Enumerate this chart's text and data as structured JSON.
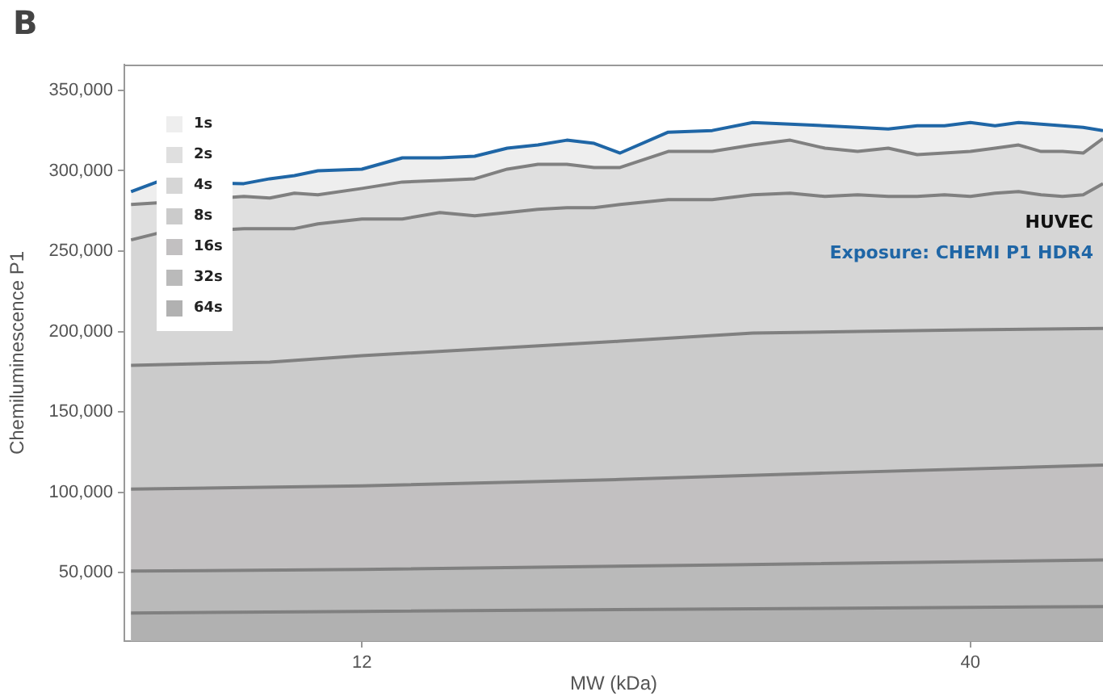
{
  "chart_data": {
    "type": "area",
    "title": "B",
    "xlabel": "MW (kDa)",
    "ylabel": "Chemiluminescence P1",
    "log": "x",
    "xlim": [
      7.5,
      52
    ],
    "xticks": [
      12,
      40
    ],
    "ylim": [
      7500,
      366000
    ],
    "yticks": [
      {
        "value": 50000,
        "label": "50,000"
      },
      {
        "value": 100000,
        "label": "100,000"
      },
      {
        "value": 150000,
        "label": "150,000"
      },
      {
        "value": 200000,
        "label": "200,000"
      },
      {
        "value": 250000,
        "label": "250,000"
      },
      {
        "value": 300000,
        "label": "300,000"
      },
      {
        "value": 350000,
        "label": "350,000"
      }
    ],
    "legend": "top left",
    "annotations": [
      "HUVEC",
      "Exposure: CHEMI P1 HDR4"
    ],
    "x": [
      7.6,
      8,
      8.5,
      9,
      9.5,
      10,
      10.5,
      11,
      12,
      13,
      14,
      15,
      16,
      17,
      18,
      19,
      20,
      22,
      24,
      26,
      28,
      30,
      32,
      34,
      36,
      38,
      40,
      42,
      44,
      46,
      48,
      50,
      52
    ],
    "series": [
      {
        "name": "1s",
        "color": "#eeeeee",
        "values": [
          287000,
          293000,
          null,
          null,
          292000,
          295000,
          297000,
          300000,
          301000,
          308000,
          308000,
          309000,
          314000,
          316000,
          319000,
          317000,
          311000,
          324000,
          325000,
          330000,
          329000,
          328000,
          327000,
          326000,
          328000,
          328000,
          330000,
          328000,
          330000,
          329000,
          328000,
          327000,
          325000
        ]
      },
      {
        "name": "2s",
        "color": "#dfdfdf",
        "values": [
          279000,
          280000,
          null,
          null,
          284000,
          283000,
          286000,
          285000,
          289000,
          293000,
          294000,
          295000,
          301000,
          304000,
          304000,
          302000,
          302000,
          312000,
          312000,
          316000,
          319000,
          314000,
          312000,
          314000,
          310000,
          311000,
          312000,
          314000,
          316000,
          312000,
          312000,
          311000,
          320000
        ]
      },
      {
        "name": "4s",
        "color": "#d6d6d6",
        "values": [
          257000,
          261000,
          null,
          null,
          264000,
          264000,
          264000,
          267000,
          270000,
          270000,
          274000,
          272000,
          274000,
          276000,
          277000,
          277000,
          279000,
          282000,
          282000,
          285000,
          286000,
          284000,
          285000,
          284000,
          284000,
          285000,
          284000,
          286000,
          287000,
          285000,
          284000,
          285000,
          292000
        ]
      },
      {
        "name": "8s",
        "color": "#cbcbcb",
        "x": [
          7.6,
          10,
          12,
          16,
          20,
          26,
          32,
          40,
          52
        ],
        "values": [
          179000,
          181000,
          185000,
          190000,
          194000,
          199000,
          200000,
          201000,
          202000
        ]
      },
      {
        "name": "16s",
        "color": "#c2c0c1",
        "x": [
          7.6,
          12,
          20,
          30,
          52
        ],
        "values": [
          102000,
          104000,
          108000,
          112000,
          117000
        ]
      },
      {
        "name": "32s",
        "color": "#bababa",
        "x": [
          7.6,
          12,
          25,
          52
        ],
        "values": [
          51000,
          52000,
          55000,
          58000
        ]
      },
      {
        "name": "64s",
        "color": "#b1b1b1",
        "x": [
          7.6,
          12,
          52
        ],
        "values": [
          25000,
          26000,
          29000
        ]
      }
    ]
  }
}
